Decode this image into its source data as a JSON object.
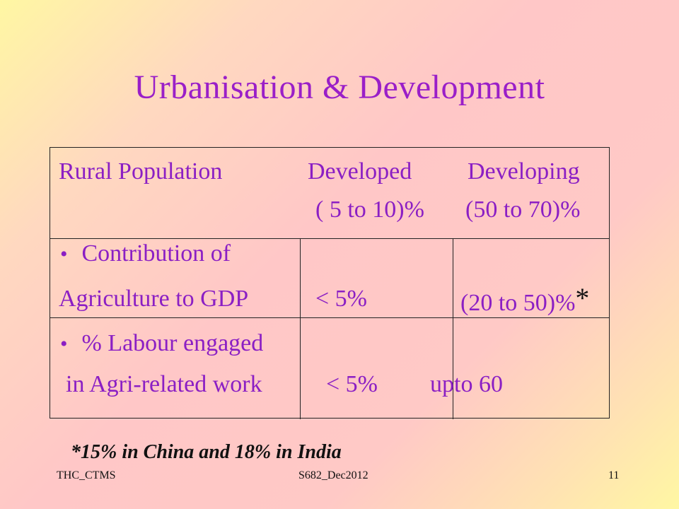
{
  "title": "Urbanisation & Development",
  "table": {
    "row1": {
      "label": "Rural Population",
      "developed": "Developed",
      "developing": "Developing",
      "developed_value": "( 5 to 10)%",
      "developing_value": "(50 to 70)%"
    },
    "row2": {
      "bullet": "•",
      "label_line1": "Contribution of",
      "label_line2": "Agriculture to GDP",
      "developed_value": "< 5%",
      "developing_value": "(20 to 50)%",
      "marker": "*"
    },
    "row3": {
      "bullet": "•",
      "label_line1": "% Labour engaged",
      "label_line2": "in Agri-related work",
      "developed_value": "< 5%",
      "developing_value": "upto 60"
    }
  },
  "footnote": "*15% in China and 18% in India",
  "footer": {
    "left": "THC_CTMS",
    "center": "S682_Dec2012",
    "page": "11"
  },
  "colors": {
    "title": "#9a1fc8",
    "row_text": "#8b1fc4",
    "text": "#111111"
  }
}
